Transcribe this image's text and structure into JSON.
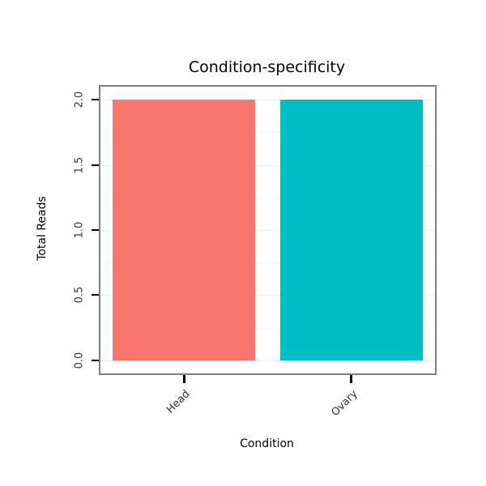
{
  "chart_data": {
    "type": "bar",
    "title": "Condition-specificity",
    "xlabel": "Condition",
    "ylabel": "Total Reads",
    "categories": [
      "Head",
      "Ovary"
    ],
    "values": [
      2,
      2
    ],
    "bar_colors": [
      "#F8766D",
      "#00BFC4"
    ],
    "ylim": [
      0,
      2
    ],
    "yticks": [
      0.0,
      0.5,
      1.0,
      1.5,
      2.0
    ],
    "ytick_labels": [
      "0.0",
      "0.5",
      "1.0",
      "1.5",
      "2.0"
    ],
    "grid": true,
    "legend_position": "none",
    "panel_border_color": "#7f7f7f",
    "grid_major_color": "#ececec",
    "tick_color": "#000000"
  }
}
